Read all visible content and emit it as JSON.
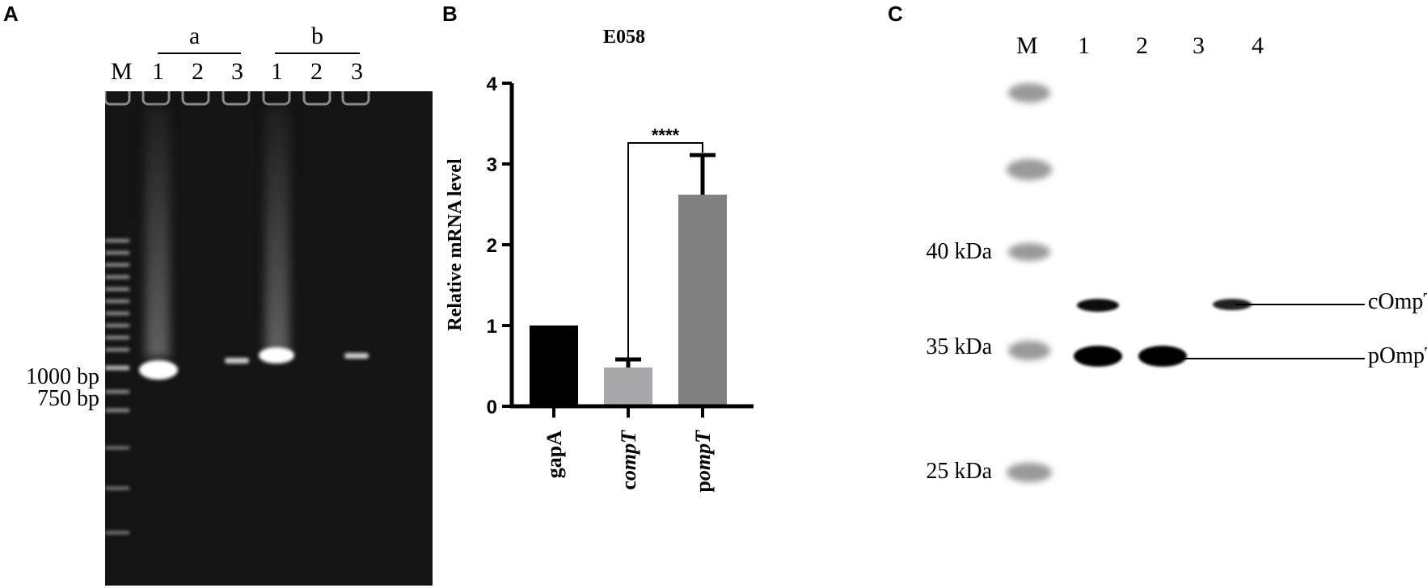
{
  "panels": {
    "A": {
      "letter": "A",
      "groups": [
        "a",
        "b"
      ],
      "lanes": [
        "M",
        "1",
        "2",
        "3",
        "1",
        "2",
        "3"
      ],
      "markers": [
        "1000 bp",
        "750 bp"
      ]
    },
    "B": {
      "letter": "B",
      "significance": "****"
    },
    "C": {
      "letter": "C",
      "lanes": [
        "M",
        "1",
        "2",
        "3",
        "4"
      ],
      "markers": [
        "40 kDa",
        "35 kDa",
        "25 kDa"
      ],
      "bands": [
        "cOmpT",
        "pOmpT"
      ]
    }
  },
  "chart_data": {
    "type": "bar",
    "title": "E058",
    "ylabel": "Relative mRNA level",
    "xlabel": "",
    "ylim": [
      0,
      4
    ],
    "yticks": [
      "0",
      "1",
      "2",
      "3",
      "4"
    ],
    "categories": [
      "gapA",
      "compT",
      "pompT"
    ],
    "category_labels": [
      {
        "prefix": "gap",
        "suffix": "A",
        "suffix_italic": false
      },
      {
        "prefix": "c",
        "suffix": "ompT",
        "suffix_italic": true
      },
      {
        "prefix": "p",
        "suffix": "ompT",
        "suffix_italic": true
      }
    ],
    "values": [
      1.0,
      0.48,
      2.62
    ],
    "errors": [
      0,
      0.1,
      0.49
    ],
    "colors": [
      "#000000",
      "#a8a8ac",
      "#808080"
    ]
  }
}
